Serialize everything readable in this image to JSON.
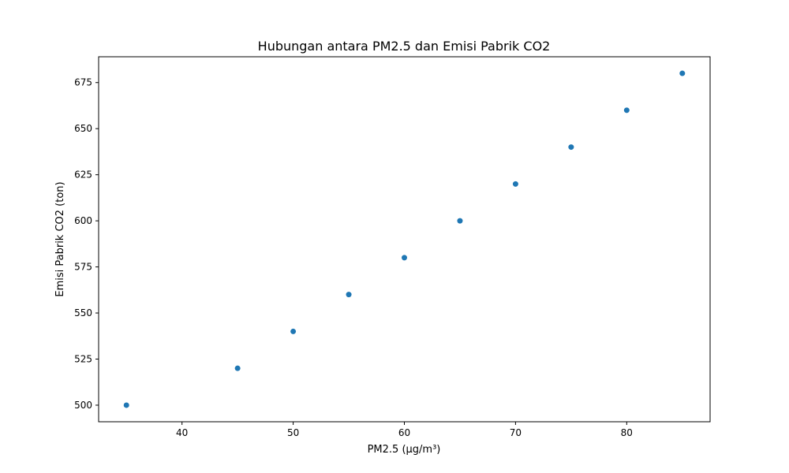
{
  "chart_data": {
    "type": "scatter",
    "title": "Hubungan antara PM2.5 dan Emisi Pabrik CO2",
    "xlabel": "PM2.5 (µg/m³)",
    "ylabel": "Emisi Pabrik CO2 (ton)",
    "x": [
      35,
      45,
      50,
      55,
      60,
      65,
      70,
      75,
      80,
      85
    ],
    "y": [
      500,
      520,
      540,
      560,
      580,
      600,
      620,
      640,
      660,
      680
    ],
    "xlim": [
      32.5,
      87.5
    ],
    "ylim": [
      491,
      689
    ],
    "xticks": [
      40,
      50,
      60,
      70,
      80
    ],
    "yticks": [
      500,
      525,
      550,
      575,
      600,
      625,
      650,
      675
    ],
    "grid": false,
    "marker_color": "#1f77b4"
  }
}
